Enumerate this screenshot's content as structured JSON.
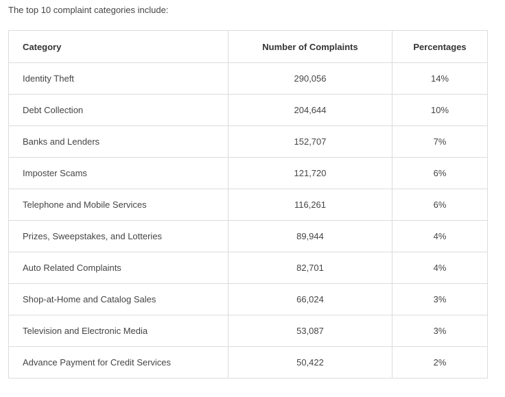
{
  "intro": "The top 10 complaint categories include:",
  "table": {
    "headers": [
      "Category",
      "Number of Complaints",
      "Percentages"
    ],
    "rows": [
      [
        "Identity Theft",
        "290,056",
        "14%"
      ],
      [
        "Debt Collection",
        "204,644",
        "10%"
      ],
      [
        "Banks and Lenders",
        "152,707",
        "7%"
      ],
      [
        "Imposter Scams",
        "121,720",
        "6%"
      ],
      [
        "Telephone and Mobile Services",
        "116,261",
        "6%"
      ],
      [
        "Prizes, Sweepstakes, and Lotteries",
        "89,944",
        "4%"
      ],
      [
        "Auto Related Complaints",
        "82,701",
        "4%"
      ],
      [
        "Shop-at-Home and Catalog Sales",
        "66,024",
        "3%"
      ],
      [
        "Television and Electronic Media",
        "53,087",
        "3%"
      ],
      [
        "Advance Payment for Credit Services",
        "50,422",
        "2%"
      ]
    ]
  }
}
